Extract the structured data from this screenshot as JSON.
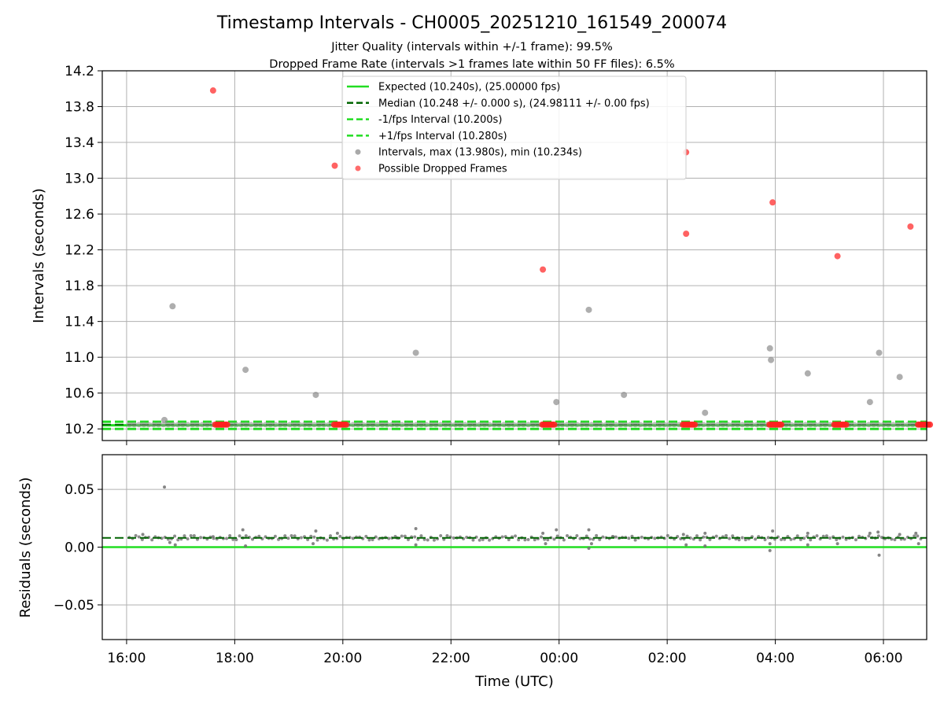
{
  "chart_data": {
    "type": "scatter",
    "title": "Timestamp Intervals - CH0005_20251210_161549_200074",
    "subtitle_lines": [
      "Jitter Quality (intervals within +/-1 frame): 99.5%",
      "Dropped Frame Rate (intervals >1 frames late within 50 FF files): 6.5%"
    ],
    "xlabel": "Time (UTC)",
    "x_unit": "hours since 16:00 UTC",
    "xlim": [
      -0.45,
      14.8
    ],
    "x_ticks": [
      0,
      2,
      4,
      6,
      8,
      10,
      12,
      14
    ],
    "x_tick_labels": [
      "16:00",
      "18:00",
      "20:00",
      "22:00",
      "00:00",
      "02:00",
      "04:00",
      "06:00"
    ],
    "intervals": {
      "ylabel": "Intervals (seconds)",
      "ylim": [
        10.07,
        14.2
      ],
      "y_ticks": [
        10.2,
        10.6,
        11.0,
        11.4,
        11.8,
        12.2,
        12.6,
        13.0,
        13.4,
        13.8,
        14.2
      ],
      "y_tick_labels": [
        "10.2",
        "10.6",
        "11.0",
        "11.4",
        "11.8",
        "12.2",
        "12.6",
        "13.0",
        "13.4",
        "13.8",
        "14.2"
      ],
      "grid": true,
      "lines": [
        {
          "name": "Expected (10.240s), (25.00000 fps)",
          "y": 10.24,
          "color": "#22dd22",
          "style": "solid"
        },
        {
          "name": "Median (10.248 +/- 0.000 s), (24.98111 +/- 0.00 fps)",
          "y": 10.248,
          "color": "#006400",
          "style": "dashed"
        },
        {
          "name": "-1/fps Interval (10.200s)",
          "y": 10.2,
          "color": "#22dd22",
          "style": "dashed"
        },
        {
          "name": "+1/fps Interval (10.280s)",
          "y": 10.28,
          "color": "#22dd22",
          "style": "dashed"
        }
      ],
      "scatter_series": [
        {
          "name": "Intervals, max (13.980s), min (10.234s)",
          "color": "#8c8c8c",
          "points": [
            [
              0.85,
              11.57
            ],
            [
              0.7,
              10.3
            ],
            [
              2.2,
              10.86
            ],
            [
              3.5,
              10.58
            ],
            [
              5.35,
              11.05
            ],
            [
              7.95,
              10.5
            ],
            [
              8.55,
              11.53
            ],
            [
              9.2,
              10.58
            ],
            [
              10.7,
              10.38
            ],
            [
              11.9,
              11.1
            ],
            [
              11.92,
              10.97
            ],
            [
              12.6,
              10.82
            ],
            [
              13.75,
              10.5
            ],
            [
              13.92,
              11.05
            ],
            [
              14.3,
              10.78
            ]
          ]
        },
        {
          "name": "Possible Dropped Frames",
          "color": "#ff3b3b",
          "points": [
            [
              1.6,
              13.98
            ],
            [
              3.85,
              13.14
            ],
            [
              7.7,
              11.98
            ],
            [
              10.35,
              13.29
            ],
            [
              10.35,
              12.38
            ],
            [
              11.95,
              12.73
            ],
            [
              13.15,
              12.13
            ],
            [
              14.5,
              12.46
            ]
          ]
        }
      ],
      "dropped_clusters": [
        1.75,
        3.95,
        7.8,
        10.4,
        12.0,
        13.2,
        14.75
      ]
    },
    "residuals": {
      "ylabel": "Residuals (seconds)",
      "ylim": [
        -0.08,
        0.08
      ],
      "y_ticks": [
        -0.05,
        0.0,
        0.05
      ],
      "y_tick_labels": [
        "−0.05",
        "0.00",
        "0.05"
      ],
      "grid": true,
      "zero_line": 0.0,
      "median_line": 0.008,
      "points": [
        [
          0.7,
          0.052
        ],
        [
          0.3,
          0.011
        ],
        [
          0.8,
          0.004
        ],
        [
          0.9,
          0.002
        ],
        [
          2.15,
          0.015
        ],
        [
          2.2,
          0.001
        ],
        [
          3.5,
          0.014
        ],
        [
          3.45,
          0.003
        ],
        [
          3.9,
          0.012
        ],
        [
          5.35,
          0.016
        ],
        [
          5.35,
          0.002
        ],
        [
          7.7,
          0.012
        ],
        [
          7.95,
          0.015
        ],
        [
          7.75,
          0.003
        ],
        [
          8.55,
          0.015
        ],
        [
          8.55,
          -0.001
        ],
        [
          8.6,
          0.003
        ],
        [
          10.3,
          0.011
        ],
        [
          10.35,
          0.002
        ],
        [
          10.7,
          0.012
        ],
        [
          10.7,
          0.001
        ],
        [
          11.9,
          -0.003
        ],
        [
          11.95,
          0.014
        ],
        [
          11.9,
          0.003
        ],
        [
          12.6,
          0.012
        ],
        [
          12.6,
          0.002
        ],
        [
          13.15,
          0.003
        ],
        [
          13.75,
          0.012
        ],
        [
          13.9,
          0.013
        ],
        [
          13.92,
          -0.007
        ],
        [
          14.3,
          0.011
        ],
        [
          14.6,
          0.012
        ],
        [
          14.65,
          0.003
        ],
        [
          1.6,
          0.009
        ],
        [
          5.0,
          0.008
        ],
        [
          9.0,
          0.009
        ],
        [
          11.3,
          0.008
        ],
        [
          14.0,
          0.008
        ]
      ]
    },
    "legend_placement": "top-center"
  }
}
